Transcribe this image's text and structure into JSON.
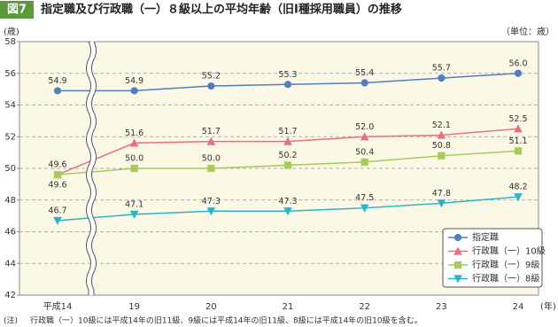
{
  "chart_data": {
    "type": "line",
    "figure_label": "図7",
    "title": "指定職及び行政職（一）８級以上の平均年齢（旧Ⅰ種採用職員）の推移",
    "y_unit": "(歳)",
    "unit_note": "（単位：歳）",
    "x_unit": "(年)",
    "note_label": "(注)",
    "note": "行政職（一）10級には平成14年の旧11級、9級には平成14年の旧11級、8級には平成14年の旧10級を含む。",
    "categories": [
      "平成14",
      "19",
      "20",
      "21",
      "22",
      "23",
      "24"
    ],
    "ylim": [
      42,
      58
    ],
    "yticks": [
      42,
      44,
      46,
      48,
      50,
      52,
      54,
      56,
      58
    ],
    "grid": true,
    "legend": "lower right",
    "series": [
      {
        "name": "指定職",
        "color": "#4f7fc0",
        "marker": "circle",
        "values": [
          54.9,
          54.9,
          55.2,
          55.3,
          55.4,
          55.7,
          56.0
        ],
        "value_labels": [
          "54.9",
          "54.9",
          "55.2",
          "55.3",
          "55.4",
          "55.7",
          "56.0"
        ]
      },
      {
        "name": "行政職（一）10級",
        "color": "#e8707f",
        "marker": "triangle",
        "values": [
          49.6,
          51.6,
          51.7,
          51.7,
          52.0,
          52.1,
          52.5
        ],
        "value_labels": [
          "49.6",
          "51.6",
          "51.7",
          "51.7",
          "52.0",
          "52.1",
          "52.5"
        ]
      },
      {
        "name": "行政職（一）9級",
        "color": "#a3cc5a",
        "marker": "square",
        "values": [
          49.6,
          50.0,
          50.0,
          50.2,
          50.4,
          50.8,
          51.1
        ],
        "value_labels": [
          "49.6",
          "50.0",
          "50.0",
          "50.2",
          "50.4",
          "50.8",
          "51.1"
        ]
      },
      {
        "name": "行政職（一）8級",
        "color": "#2ab4c8",
        "marker": "triangle-down",
        "values": [
          46.7,
          47.1,
          47.3,
          47.3,
          47.5,
          47.8,
          48.2
        ],
        "value_labels": [
          "46.7",
          "47.1",
          "47.3",
          "47.3",
          "47.5",
          "47.8",
          "48.2"
        ]
      }
    ]
  }
}
